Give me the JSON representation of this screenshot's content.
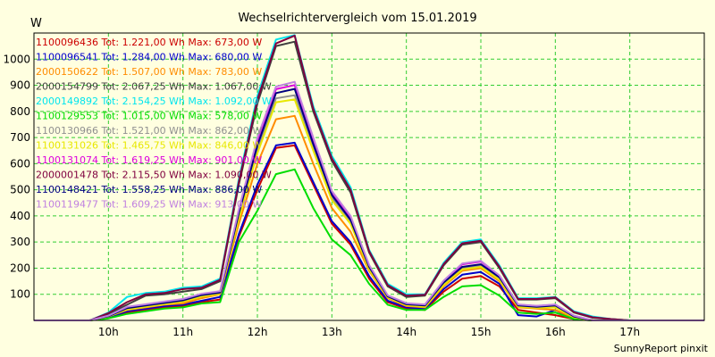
{
  "chart_data": {
    "type": "line",
    "title": "Wechselrichtervergleich vom 15.01.2019",
    "ylabel": "W",
    "ylim": [
      0,
      1100
    ],
    "xlim": [
      9.0,
      18.0
    ],
    "yticks": [
      100,
      200,
      300,
      400,
      500,
      600,
      700,
      800,
      900,
      1000
    ],
    "xticks": [
      {
        "value": 10,
        "label": "10h"
      },
      {
        "value": 11,
        "label": "11h"
      },
      {
        "value": 12,
        "label": "12h"
      },
      {
        "value": 13,
        "label": "13h"
      },
      {
        "value": 14,
        "label": "14h"
      },
      {
        "value": 15,
        "label": "15h"
      },
      {
        "value": 16,
        "label": "16h"
      },
      {
        "value": 17,
        "label": "17h"
      }
    ],
    "grid": true,
    "legend_position": "top-left",
    "footer": "SunnyReport pinxit",
    "x": [
      9.0,
      9.25,
      9.5,
      9.75,
      10.0,
      10.25,
      10.5,
      10.75,
      11.0,
      11.25,
      11.5,
      11.75,
      12.0,
      12.25,
      12.5,
      12.75,
      13.0,
      13.25,
      13.5,
      13.75,
      14.0,
      14.25,
      14.5,
      14.75,
      15.0,
      15.25,
      15.5,
      15.75,
      16.0,
      16.25,
      16.5,
      16.75,
      17.0,
      17.25,
      17.5,
      17.75,
      18.0
    ],
    "series": [
      {
        "name": "1100096436",
        "legend": "1100096436 Tot: 1.221,00 Wh Max: 673,00 W",
        "color": "#cc0000",
        "values": [
          0,
          0,
          0,
          0,
          10,
          30,
          40,
          50,
          55,
          70,
          80,
          320,
          500,
          660,
          670,
          520,
          370,
          290,
          160,
          70,
          45,
          40,
          110,
          160,
          170,
          130,
          40,
          30,
          20,
          5,
          0,
          0,
          0,
          0,
          0,
          0,
          0
        ]
      },
      {
        "name": "1100096541",
        "legend": "1100096541 Tot: 1.284,00 Wh Max: 680,00 W",
        "color": "#0000cc",
        "values": [
          0,
          0,
          0,
          0,
          12,
          35,
          45,
          55,
          60,
          75,
          90,
          330,
          520,
          670,
          680,
          530,
          380,
          300,
          170,
          75,
          50,
          45,
          120,
          175,
          185,
          140,
          20,
          15,
          40,
          5,
          0,
          0,
          0,
          0,
          0,
          0,
          0
        ]
      },
      {
        "name": "2000150622",
        "legend": "2000150622 Tot: 1.507,00 Wh Max: 783,00 W",
        "color": "#ff8c00",
        "values": [
          0,
          0,
          0,
          0,
          15,
          40,
          50,
          60,
          65,
          85,
          100,
          370,
          600,
          770,
          783,
          600,
          430,
          340,
          190,
          85,
          55,
          50,
          130,
          190,
          200,
          150,
          50,
          45,
          40,
          10,
          0,
          0,
          0,
          0,
          0,
          0,
          0
        ]
      },
      {
        "name": "2000154799",
        "legend": "2000154799 Tot: 2.067,25 Wh Max: 1.067,00 W",
        "color": "#404040",
        "values": [
          0,
          0,
          0,
          0,
          25,
          60,
          95,
          100,
          110,
          120,
          150,
          520,
          830,
          1050,
          1067,
          800,
          610,
          490,
          260,
          130,
          90,
          95,
          210,
          290,
          300,
          200,
          80,
          80,
          85,
          30,
          10,
          5,
          0,
          0,
          0,
          0,
          0
        ]
      },
      {
        "name": "2000149892",
        "legend": "2000149892 Tot: 2.154,25 Wh Max: 1.092,00 W",
        "color": "#00e5ee",
        "values": [
          0,
          0,
          0,
          0,
          30,
          90,
          105,
          110,
          125,
          130,
          160,
          540,
          860,
          1075,
          1092,
          820,
          630,
          510,
          270,
          140,
          100,
          100,
          220,
          300,
          310,
          210,
          85,
          85,
          90,
          35,
          15,
          5,
          0,
          0,
          0,
          0,
          0
        ]
      },
      {
        "name": "1100129553",
        "legend": "1100129553 Tot: 1.015,00 Wh Max: 578,00 W",
        "color": "#00dd00",
        "values": [
          0,
          0,
          0,
          0,
          8,
          25,
          35,
          45,
          50,
          65,
          70,
          300,
          420,
          560,
          578,
          430,
          310,
          250,
          140,
          60,
          40,
          40,
          90,
          130,
          135,
          95,
          30,
          25,
          30,
          5,
          0,
          0,
          0,
          0,
          0,
          0,
          0
        ]
      },
      {
        "name": "1100130966",
        "legend": "1100130966 Tot: 1.521,00 Wh Max: 862,00 W",
        "color": "#909090",
        "values": [
          0,
          0,
          0,
          0,
          15,
          45,
          55,
          65,
          75,
          95,
          105,
          400,
          650,
          850,
          862,
          660,
          470,
          380,
          200,
          90,
          60,
          55,
          140,
          200,
          210,
          160,
          55,
          50,
          55,
          15,
          0,
          0,
          0,
          0,
          0,
          0,
          0
        ]
      },
      {
        "name": "1100131026",
        "legend": "1100131026 Tot: 1.465,75 Wh Max: 846,00 W",
        "color": "#e8e800",
        "values": [
          0,
          0,
          0,
          0,
          15,
          42,
          52,
          62,
          72,
          92,
          102,
          390,
          640,
          835,
          846,
          650,
          460,
          370,
          195,
          88,
          58,
          52,
          135,
          195,
          205,
          155,
          52,
          48,
          50,
          12,
          0,
          0,
          0,
          0,
          0,
          0,
          0
        ]
      },
      {
        "name": "1100131074",
        "legend": "1100131074 Tot: 1.619,25 Wh Max: 901,00 W",
        "color": "#dd00dd",
        "values": [
          0,
          0,
          0,
          0,
          18,
          50,
          60,
          70,
          80,
          100,
          110,
          420,
          690,
          885,
          901,
          690,
          490,
          395,
          210,
          95,
          65,
          60,
          150,
          215,
          225,
          170,
          60,
          55,
          60,
          18,
          0,
          0,
          0,
          0,
          0,
          0,
          0
        ]
      },
      {
        "name": "2000001478",
        "legend": "2000001478 Tot: 2.115,50 Wh Max: 1.090,00 W",
        "color": "#800040",
        "values": [
          0,
          0,
          0,
          0,
          28,
          70,
          100,
          105,
          120,
          125,
          155,
          530,
          845,
          1060,
          1090,
          810,
          620,
          500,
          265,
          135,
          95,
          98,
          215,
          295,
          305,
          205,
          82,
          82,
          88,
          32,
          12,
          5,
          0,
          0,
          0,
          0,
          0
        ]
      },
      {
        "name": "1100148421",
        "legend": "1100148421 Tot: 1.558,25 Wh Max: 886,00 W",
        "color": "#000080",
        "values": [
          0,
          0,
          0,
          0,
          16,
          47,
          57,
          67,
          77,
          97,
          107,
          410,
          670,
          870,
          886,
          675,
          480,
          385,
          205,
          92,
          62,
          57,
          145,
          205,
          215,
          165,
          57,
          52,
          57,
          15,
          0,
          0,
          0,
          0,
          0,
          0,
          0
        ]
      },
      {
        "name": "1100119477",
        "legend": "1100119477 Tot: 1.609,25 Wh Max: 913,00 W",
        "color": "#c080e0",
        "values": [
          0,
          0,
          0,
          0,
          18,
          52,
          62,
          72,
          82,
          102,
          112,
          425,
          700,
          895,
          913,
          700,
          495,
          400,
          212,
          96,
          66,
          61,
          152,
          218,
          228,
          172,
          61,
          56,
          61,
          18,
          0,
          0,
          0,
          0,
          0,
          0,
          0
        ]
      }
    ]
  }
}
